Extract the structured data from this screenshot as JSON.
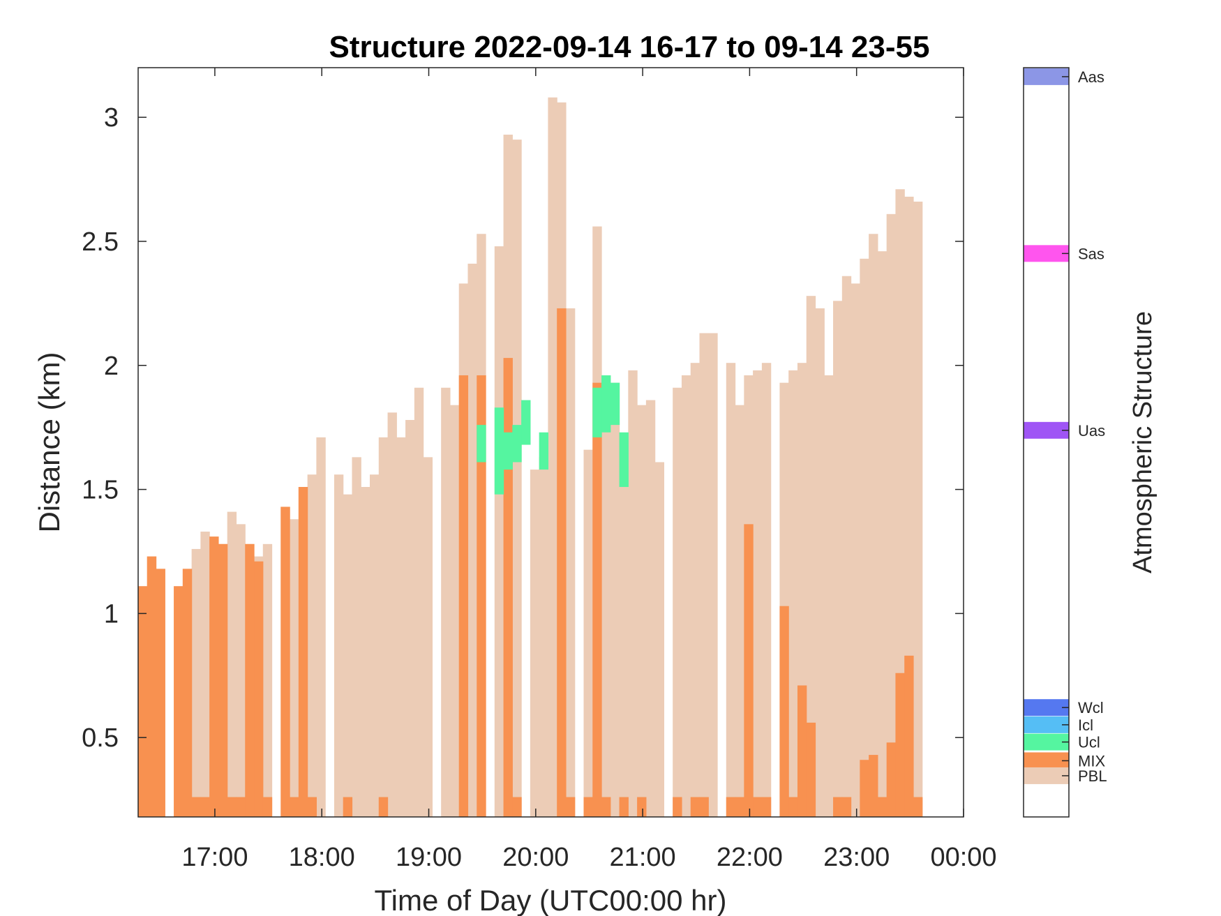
{
  "chart_data": {
    "type": "bar",
    "title": "Structure 2022-09-14 16-17 to 09-14 23-55",
    "xlabel": "Time of Day (UTC00:00 hr)",
    "ylabel": "Distance (km)",
    "colorbar_label": "Atmospheric Structure",
    "xlim": [
      16.283,
      24.0
    ],
    "ylim": [
      0.18,
      3.2
    ],
    "x_ticks": [
      {
        "value": 17,
        "label": "17:00"
      },
      {
        "value": 18,
        "label": "18:00"
      },
      {
        "value": 19,
        "label": "19:00"
      },
      {
        "value": 20,
        "label": "20:00"
      },
      {
        "value": 21,
        "label": "21:00"
      },
      {
        "value": 22,
        "label": "22:00"
      },
      {
        "value": 23,
        "label": "23:00"
      },
      {
        "value": 24,
        "label": "00:00"
      }
    ],
    "y_ticks": [
      {
        "value": 0.5,
        "label": "0.5"
      },
      {
        "value": 1.0,
        "label": "1"
      },
      {
        "value": 1.5,
        "label": "1.5"
      },
      {
        "value": 2.0,
        "label": "2"
      },
      {
        "value": 2.5,
        "label": "2.5"
      },
      {
        "value": 3.0,
        "label": "3"
      }
    ],
    "grid": false,
    "bin_width_hours": 0.0833,
    "x_start": 16.283,
    "categories_legend": [
      {
        "name": "Aas",
        "color": "#8c96e6"
      },
      {
        "name": "Sas",
        "color": "#ff55ee"
      },
      {
        "name": "Uas",
        "color": "#9f55f5"
      },
      {
        "name": "Wcl",
        "color": "#5578f0"
      },
      {
        "name": "Icl",
        "color": "#55bef5"
      },
      {
        "name": "Ucl",
        "color": "#55f5a0"
      },
      {
        "name": "MIX",
        "color": "#f89150"
      },
      {
        "name": "PBL",
        "color": "#ecccb6"
      }
    ],
    "series": [
      {
        "name": "PBL",
        "color": "#ecccb6",
        "values": [
          1.11,
          1.23,
          1.18,
          null,
          1.11,
          1.18,
          1.26,
          1.33,
          1.31,
          1.28,
          1.41,
          1.36,
          1.28,
          1.23,
          1.28,
          null,
          1.43,
          1.38,
          1.51,
          1.56,
          1.71,
          null,
          1.56,
          1.48,
          1.63,
          1.51,
          1.56,
          1.71,
          1.81,
          1.71,
          1.78,
          1.91,
          1.63,
          null,
          1.91,
          1.84,
          2.33,
          2.41,
          2.53,
          null,
          2.48,
          2.93,
          2.91,
          null,
          1.58,
          1.63,
          3.08,
          3.06,
          2.23,
          null,
          1.66,
          2.56,
          1.96,
          1.93,
          1.63,
          1.98,
          1.84,
          1.86,
          1.61,
          null,
          1.91,
          1.96,
          2.01,
          2.13,
          2.13,
          null,
          2.01,
          1.84,
          1.96,
          1.98,
          2.01,
          null,
          1.93,
          1.98,
          2.01,
          2.28,
          2.23,
          1.96,
          2.26,
          2.36,
          2.33,
          2.43,
          2.53,
          2.46,
          2.61,
          2.71,
          2.68,
          2.66
        ]
      },
      {
        "name": "MIX",
        "color": "#f89150",
        "values": [
          1.11,
          1.23,
          1.18,
          null,
          1.11,
          1.18,
          0.26,
          0.26,
          1.31,
          1.28,
          0.26,
          0.26,
          1.28,
          1.21,
          0.26,
          null,
          1.43,
          0.26,
          1.51,
          0.26,
          null,
          null,
          null,
          0.26,
          null,
          null,
          null,
          0.26,
          null,
          null,
          null,
          null,
          null,
          null,
          null,
          null,
          1.96,
          null,
          1.96,
          null,
          null,
          2.03,
          0.26,
          null,
          null,
          null,
          null,
          2.23,
          0.26,
          null,
          0.26,
          1.93,
          0.26,
          null,
          0.26,
          null,
          0.26,
          null,
          null,
          null,
          0.26,
          null,
          0.26,
          0.26,
          null,
          null,
          0.26,
          0.26,
          1.36,
          0.26,
          0.26,
          null,
          1.03,
          0.26,
          0.71,
          0.56,
          null,
          null,
          0.26,
          0.26,
          null,
          0.41,
          0.43,
          0.26,
          0.48,
          0.76,
          0.83,
          0.26
        ]
      },
      {
        "name": "Ucl",
        "color": "#55f5a0",
        "segments": [
          {
            "bin": 38,
            "from": 1.61,
            "to": 1.76
          },
          {
            "bin": 40,
            "from": 1.48,
            "to": 1.83
          },
          {
            "bin": 41,
            "from": 1.58,
            "to": 1.73
          },
          {
            "bin": 42,
            "from": 1.61,
            "to": 1.76
          },
          {
            "bin": 43,
            "from": 1.68,
            "to": 1.86
          },
          {
            "bin": 45,
            "from": 1.58,
            "to": 1.73
          },
          {
            "bin": 51,
            "from": 1.71,
            "to": 1.91
          },
          {
            "bin": 52,
            "from": 1.73,
            "to": 1.96
          },
          {
            "bin": 53,
            "from": 1.76,
            "to": 1.93
          },
          {
            "bin": 54,
            "from": 1.51,
            "to": 1.73
          }
        ]
      }
    ]
  }
}
